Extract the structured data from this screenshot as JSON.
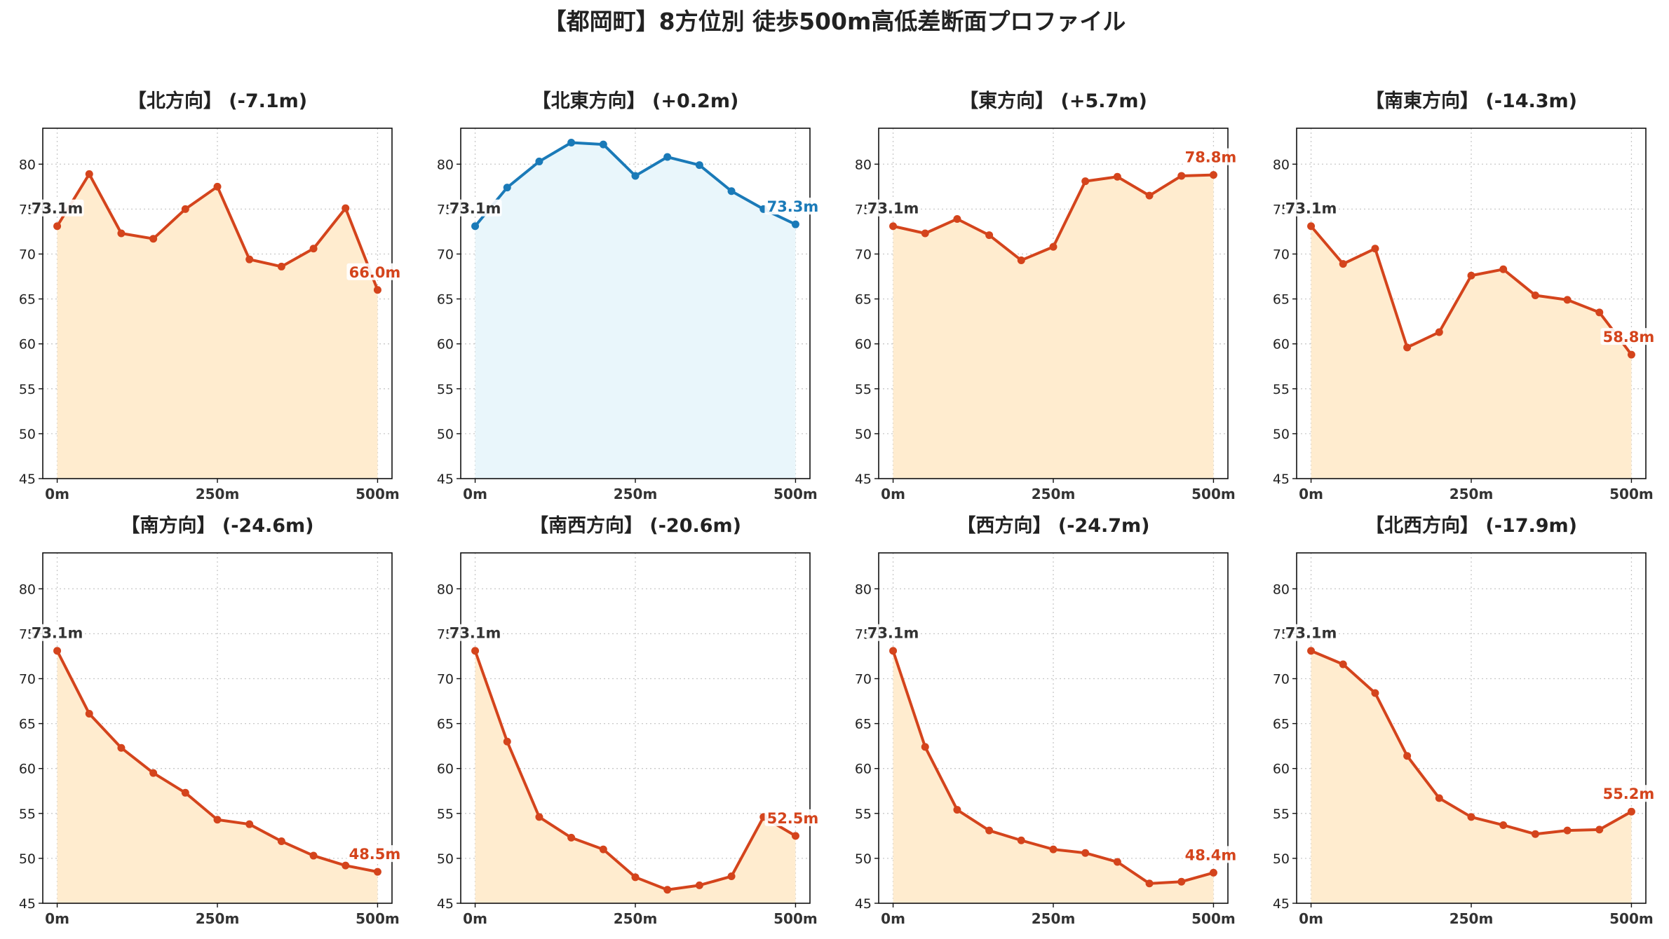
{
  "figure": {
    "title": "【都岡町】8方位別 徒歩500m高低差断面プロファイル"
  },
  "colors": {
    "down": "#d4441c",
    "down_fill": "#ffeccf",
    "flat": "#1a7ab8",
    "flat_fill": "#e9f6fb",
    "start_label": "#333333"
  },
  "chart_data": [
    {
      "type": "area",
      "title": "【北方向】 (-7.1m)",
      "trend": "down",
      "x": [
        0,
        50,
        100,
        150,
        200,
        250,
        300,
        350,
        400,
        450,
        500
      ],
      "y": [
        73.1,
        78.9,
        72.3,
        71.7,
        75.0,
        77.5,
        69.4,
        68.6,
        70.6,
        75.1,
        66.0
      ],
      "xticks": [
        "0m",
        "250m",
        "500m"
      ],
      "ylim": [
        45,
        84
      ],
      "yticks": [
        45,
        50,
        55,
        60,
        65,
        70,
        75,
        80
      ],
      "start_label": "73.1m",
      "end_label": "66.0m",
      "grid": true
    },
    {
      "type": "area",
      "title": "【北東方向】 (+0.2m)",
      "trend": "flat",
      "x": [
        0,
        50,
        100,
        150,
        200,
        250,
        300,
        350,
        400,
        450,
        500
      ],
      "y": [
        73.1,
        77.4,
        80.3,
        82.4,
        82.2,
        78.7,
        80.8,
        79.9,
        77.0,
        75.0,
        73.3
      ],
      "xticks": [
        "0m",
        "250m",
        "500m"
      ],
      "ylim": [
        45,
        84
      ],
      "yticks": [
        45,
        50,
        55,
        60,
        65,
        70,
        75,
        80
      ],
      "start_label": "73.1m",
      "end_label": "73.3m",
      "grid": true
    },
    {
      "type": "area",
      "title": "【東方向】 (+5.7m)",
      "trend": "up",
      "x": [
        0,
        50,
        100,
        150,
        200,
        250,
        300,
        350,
        400,
        450,
        500
      ],
      "y": [
        73.1,
        72.3,
        73.9,
        72.1,
        69.3,
        70.8,
        78.1,
        78.6,
        76.5,
        78.7,
        78.8
      ],
      "xticks": [
        "0m",
        "250m",
        "500m"
      ],
      "ylim": [
        45,
        84
      ],
      "yticks": [
        45,
        50,
        55,
        60,
        65,
        70,
        75,
        80
      ],
      "start_label": "73.1m",
      "end_label": "78.8m",
      "grid": true
    },
    {
      "type": "area",
      "title": "【南東方向】 (-14.3m)",
      "trend": "down",
      "x": [
        0,
        50,
        100,
        150,
        200,
        250,
        300,
        350,
        400,
        450,
        500
      ],
      "y": [
        73.1,
        68.9,
        70.6,
        59.6,
        61.3,
        67.6,
        68.3,
        65.4,
        64.9,
        63.5,
        58.8
      ],
      "xticks": [
        "0m",
        "250m",
        "500m"
      ],
      "ylim": [
        45,
        84
      ],
      "yticks": [
        45,
        50,
        55,
        60,
        65,
        70,
        75,
        80
      ],
      "start_label": "73.1m",
      "end_label": "58.8m",
      "grid": true
    },
    {
      "type": "area",
      "title": "【南方向】 (-24.6m)",
      "trend": "down",
      "x": [
        0,
        50,
        100,
        150,
        200,
        250,
        300,
        350,
        400,
        450,
        500
      ],
      "y": [
        73.1,
        66.1,
        62.3,
        59.5,
        57.3,
        54.3,
        53.8,
        51.9,
        50.3,
        49.2,
        48.5
      ],
      "xticks": [
        "0m",
        "250m",
        "500m"
      ],
      "ylim": [
        45,
        84
      ],
      "yticks": [
        45,
        50,
        55,
        60,
        65,
        70,
        75,
        80
      ],
      "start_label": "73.1m",
      "end_label": "48.5m",
      "grid": true
    },
    {
      "type": "area",
      "title": "【南西方向】 (-20.6m)",
      "trend": "down",
      "x": [
        0,
        50,
        100,
        150,
        200,
        250,
        300,
        350,
        400,
        450,
        500
      ],
      "y": [
        73.1,
        63.0,
        54.6,
        52.3,
        51.0,
        47.9,
        46.5,
        47.0,
        48.0,
        54.6,
        52.5
      ],
      "xticks": [
        "0m",
        "250m",
        "500m"
      ],
      "ylim": [
        45,
        84
      ],
      "yticks": [
        45,
        50,
        55,
        60,
        65,
        70,
        75,
        80
      ],
      "start_label": "73.1m",
      "end_label": "52.5m",
      "grid": true
    },
    {
      "type": "area",
      "title": "【西方向】 (-24.7m)",
      "trend": "down",
      "x": [
        0,
        50,
        100,
        150,
        200,
        250,
        300,
        350,
        400,
        450,
        500
      ],
      "y": [
        73.1,
        62.4,
        55.4,
        53.1,
        52.0,
        51.0,
        50.6,
        49.6,
        47.2,
        47.4,
        48.4
      ],
      "xticks": [
        "0m",
        "250m",
        "500m"
      ],
      "ylim": [
        45,
        84
      ],
      "yticks": [
        45,
        50,
        55,
        60,
        65,
        70,
        75,
        80
      ],
      "start_label": "73.1m",
      "end_label": "48.4m",
      "grid": true
    },
    {
      "type": "area",
      "title": "【北西方向】 (-17.9m)",
      "trend": "down",
      "x": [
        0,
        50,
        100,
        150,
        200,
        250,
        300,
        350,
        400,
        450,
        500
      ],
      "y": [
        73.1,
        71.6,
        68.4,
        61.4,
        56.7,
        54.6,
        53.7,
        52.7,
        53.1,
        53.2,
        55.2
      ],
      "xticks": [
        "0m",
        "250m",
        "500m"
      ],
      "ylim": [
        45,
        84
      ],
      "yticks": [
        45,
        50,
        55,
        60,
        65,
        70,
        75,
        80
      ],
      "start_label": "73.1m",
      "end_label": "55.2m",
      "grid": true
    }
  ]
}
